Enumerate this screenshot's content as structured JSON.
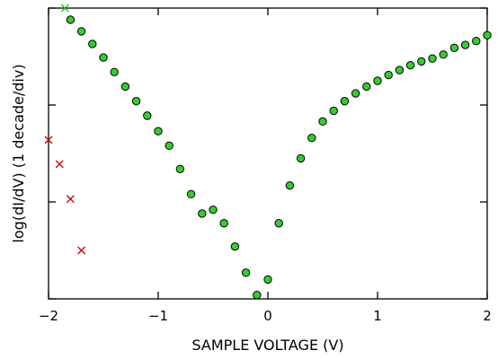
{
  "chart_data": {
    "type": "scatter",
    "title": "",
    "xlabel": "SAMPLE VOLTAGE (V)",
    "ylabel": "log(dI/dV)   (1 decade/div)",
    "xlim": [
      -2,
      2
    ],
    "ylim": [
      0,
      3
    ],
    "y_unit": "decades (relative)",
    "x_ticks": [
      -2,
      -1,
      0,
      1,
      2
    ],
    "x_tick_labels": [
      "−2",
      "−1",
      "0",
      "1",
      "2"
    ],
    "y_ticks": [
      0,
      1,
      2,
      3
    ],
    "y_tick_labels": [
      "",
      "",
      "",
      ""
    ],
    "grid": false,
    "legend": "none",
    "colors": {
      "points_fill": "#33cc33",
      "points_edge": "#000000",
      "cross": "#cc0000",
      "cross_green": "#22bb22",
      "axes": "#000000"
    },
    "series": [
      {
        "marker": "circle",
        "x": [
          -1.8,
          -1.7,
          -1.6,
          -1.5,
          -1.4,
          -1.3,
          -1.2,
          -1.1,
          -1.0,
          -0.9,
          -0.8,
          -0.7,
          -0.6,
          -0.5,
          -0.4,
          -0.3,
          -0.2,
          -0.1,
          0.0,
          0.1,
          0.2,
          0.3,
          0.4,
          0.5,
          0.6,
          0.7,
          0.8,
          0.9,
          1.0,
          1.1,
          1.2,
          1.3,
          1.4,
          1.5,
          1.6,
          1.7,
          1.8,
          1.9,
          2.0
        ],
        "y": [
          2.88,
          2.76,
          2.63,
          2.49,
          2.34,
          2.19,
          2.04,
          1.89,
          1.73,
          1.58,
          1.34,
          1.08,
          0.88,
          0.92,
          0.78,
          0.54,
          0.27,
          0.04,
          0.2,
          0.78,
          1.17,
          1.45,
          1.66,
          1.83,
          1.94,
          2.04,
          2.12,
          2.19,
          2.25,
          2.31,
          2.36,
          2.41,
          2.45,
          2.48,
          2.52,
          2.59,
          2.62,
          2.66,
          2.72
        ]
      },
      {
        "marker": "x",
        "x": [
          -1.85
        ],
        "y": [
          3.0
        ]
      },
      {
        "marker": "x",
        "x": [
          -2.0,
          -1.9,
          -1.8,
          -1.7
        ],
        "y": [
          1.64,
          1.39,
          1.03,
          0.5
        ]
      }
    ]
  }
}
